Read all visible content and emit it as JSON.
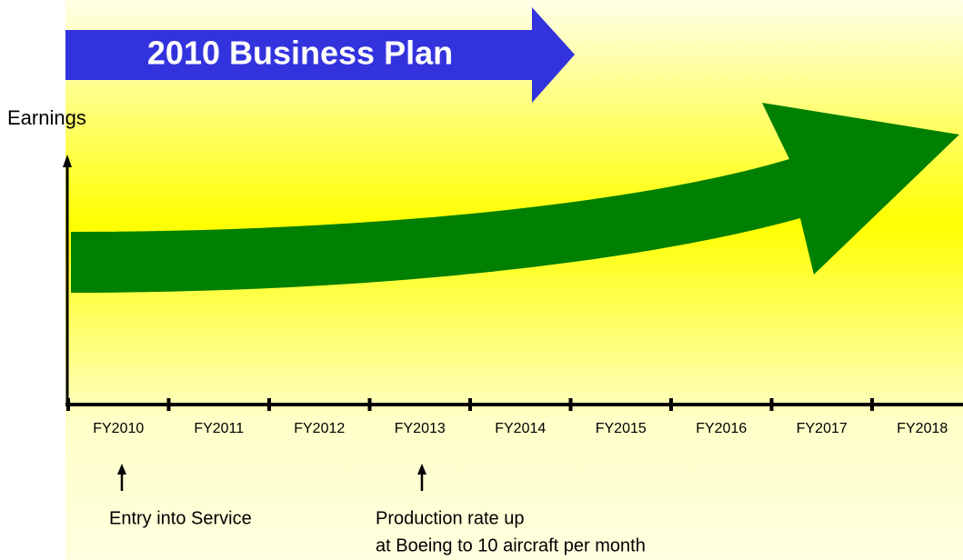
{
  "header": {
    "title": "2010 Business Plan"
  },
  "axis": {
    "y_label": "Earnings",
    "years": [
      "FY2010",
      "FY2011",
      "FY2012",
      "FY2013",
      "FY2014",
      "FY2015",
      "FY2016",
      "FY2017",
      "FY2018"
    ]
  },
  "annotations": [
    {
      "lines": [
        "Entry into Service"
      ]
    },
    {
      "lines": [
        "Production rate up",
        "at Boeing  to 10 aircraft per month"
      ]
    }
  ]
}
